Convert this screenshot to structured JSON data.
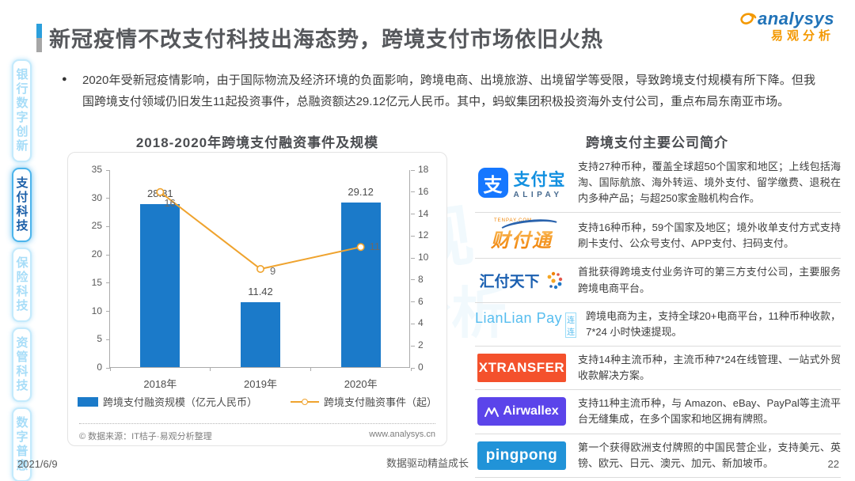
{
  "header": {
    "title": "新冠疫情不改支付科技出海态势，跨境支付市场依旧火热",
    "logo": {
      "name": "analysys",
      "cn": "易观分析",
      "blue": "#2173b8",
      "orange": "#f39800"
    }
  },
  "sidebar": {
    "items": [
      {
        "label": "银行数字创新",
        "active": false
      },
      {
        "label": "支付科技",
        "active": true
      },
      {
        "label": "保险科技",
        "active": false
      },
      {
        "label": "资管科技",
        "active": false
      },
      {
        "label": "数字普惠",
        "active": false
      }
    ]
  },
  "summary": {
    "bullet": "●",
    "text": "2020年受新冠疫情影响，由于国际物流及经济环境的负面影响，跨境电商、出境旅游、出境留学等受限，导致跨境支付规模有所下降。但我国跨境支付领域仍旧发生11起投资事件，总融资额达29.12亿元人民币。其中，蚂蚁集团积极投资海外支付公司，重点布局东南亚市场。"
  },
  "chart_data": {
    "type": "bar",
    "title": "2018-2020年跨境支付融资事件及规模",
    "categories": [
      "2018年",
      "2019年",
      "2020年"
    ],
    "series": [
      {
        "name": "跨境支付融资规模（亿元人民币）",
        "type": "bar",
        "axis": "left",
        "values": [
          28.81,
          11.42,
          29.12
        ],
        "color": "#1b7ac9"
      },
      {
        "name": "跨境支付融资事件（起）",
        "type": "line",
        "axis": "right",
        "values": [
          16,
          9,
          11
        ],
        "color": "#efa32e"
      }
    ],
    "left_axis": {
      "min": 0,
      "max": 35,
      "step": 5
    },
    "right_axis": {
      "min": 0,
      "max": 18,
      "step": 2
    },
    "grid": false,
    "legend_position": "bottom"
  },
  "chart_footer": {
    "source": "© 数据来源：IT桔子·易观分析整理",
    "website": "www.analysys.cn"
  },
  "companies": {
    "title": "跨境支付主要公司简介",
    "rows": [
      {
        "logo": {
          "icon": "支",
          "cn": "支付宝",
          "en": "ALIPAY",
          "color": "#1677ff"
        },
        "desc": "支持27种币种，覆盖全球超50个国家和地区；上线包括海淘、国际航旅、海外转运、境外支付、留学缴费、退税在内多种产品；与超250家金融机构合作。"
      },
      {
        "logo": {
          "cn": "财付通",
          "en": "TENPAY.COM",
          "color": "#f08300"
        },
        "desc": "支持16种币种，59个国家及地区；境外收单支付方式支持刷卡支付、公众号支付、APP支付、扫码支付。"
      },
      {
        "logo": {
          "cn": "汇付天下",
          "color": "#1a5fb0"
        },
        "desc": "首批获得跨境支付业务许可的第三方支付公司，主要服务跨境电商平台。"
      },
      {
        "logo": {
          "en": "LianLian Pay",
          "cn": "连连",
          "color": "#56bdef"
        },
        "desc": "跨境电商为主，支持全球20+电商平台，11种币种收款，7*24 小时快速提现。"
      },
      {
        "logo": {
          "en": "XTRANSFER",
          "color": "#f4512c"
        },
        "desc": "支持14种主流币种，主流币种7*24在线管理、一站式外贸收款解决方案。"
      },
      {
        "logo": {
          "en": "Airwallex",
          "color": "#5b44ea"
        },
        "desc": "支持11种主流币种，与 Amazon、eBay、PayPal等主流平台无缝集成，在多个国家和地区拥有牌照。"
      },
      {
        "logo": {
          "en": "pingpong",
          "color": "#2193d8"
        },
        "desc": "第一个获得欧洲支付牌照的中国民营企业，支持美元、英镑、欧元、日元、澳元、加元、新加坡币。"
      }
    ]
  },
  "footer": {
    "date": "2021/6/9",
    "slogan": "数据驱动精益成长",
    "page": "22"
  }
}
